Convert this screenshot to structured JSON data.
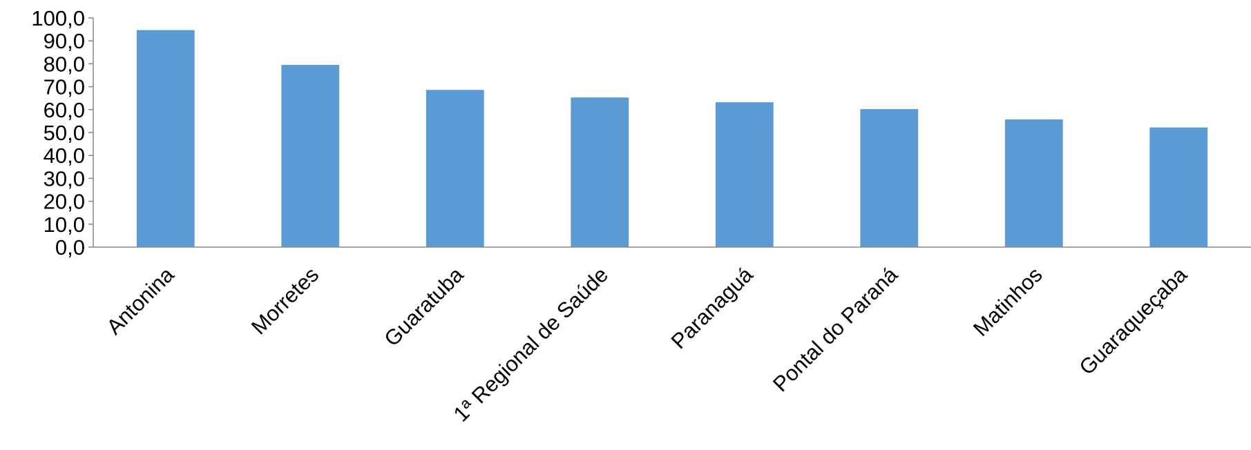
{
  "chart_data": {
    "type": "bar",
    "title": "",
    "xlabel": "",
    "ylabel": "",
    "categories": [
      "Antonina",
      "Morretes",
      "Guaratuba",
      "1ª Regional de Saúde",
      "Paranaguá",
      "Pontal do Paraná",
      "Matinhos",
      "Guaraqueçaba"
    ],
    "series": [
      {
        "values": [
          94.7,
          79.5,
          68.6,
          65.3,
          63.2,
          60.2,
          55.7,
          52.2
        ]
      }
    ],
    "ylim": [
      0,
      100
    ],
    "yticks": [
      "0,0",
      "10,0",
      "20,0",
      "30,0",
      "40,0",
      "50,0",
      "60,0",
      "70,0",
      "80,0",
      "90,0",
      "100,0"
    ],
    "grid": false,
    "legend": "none",
    "colors": {
      "bar": "#5B9BD5",
      "axis": "#868686",
      "text": "#000000"
    }
  }
}
